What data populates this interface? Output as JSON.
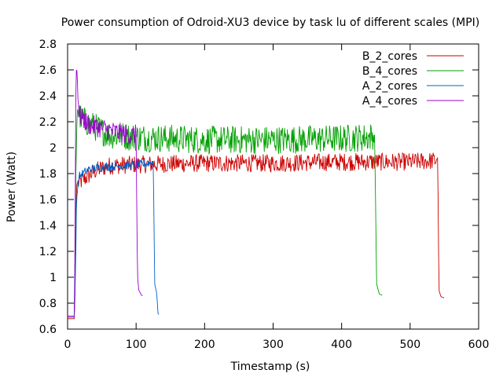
{
  "chart_data": {
    "type": "line",
    "title": "Power consumption of Odroid-XU3 device by task lu of different scales (MPI)",
    "xlabel": "Timestamp (s)",
    "ylabel": "Power (Watt)",
    "xlim": [
      0,
      600
    ],
    "ylim": [
      0.6,
      2.8
    ],
    "xticks": [
      0,
      100,
      200,
      300,
      400,
      500,
      600
    ],
    "xtick_labels": [
      "0",
      "100",
      "200",
      "300",
      "400",
      "500",
      "600"
    ],
    "yticks": [
      0.6,
      0.8,
      1.0,
      1.2,
      1.4,
      1.6,
      1.8,
      2.0,
      2.2,
      2.4,
      2.6,
      2.8
    ],
    "ytick_labels": [
      "0.6",
      "0.8",
      "1",
      "1.2",
      "1.4",
      "1.6",
      "1.8",
      "2",
      "2.2",
      "2.4",
      "2.6",
      "2.8"
    ],
    "grid": false,
    "legend_position": "top-right",
    "series": [
      {
        "name": "B_2_cores",
        "color": "#cc0000",
        "points": [
          [
            0,
            0.68
          ],
          [
            10,
            0.68
          ],
          [
            12,
            1.3
          ],
          [
            13,
            1.72
          ],
          [
            20,
            1.74
          ],
          [
            40,
            1.82
          ],
          [
            60,
            1.86
          ],
          [
            100,
            1.87
          ],
          [
            200,
            1.88
          ],
          [
            300,
            1.88
          ],
          [
            400,
            1.89
          ],
          [
            500,
            1.89
          ],
          [
            538,
            1.9
          ],
          [
            540,
            1.92
          ],
          [
            541,
            1.55
          ],
          [
            542,
            0.9
          ],
          [
            545,
            0.85
          ],
          [
            550,
            0.84
          ]
        ]
      },
      {
        "name": "B_4_cores",
        "color": "#00a000",
        "points": [
          [
            0,
            0.7
          ],
          [
            10,
            0.7
          ],
          [
            12,
            1.8
          ],
          [
            14,
            2.3
          ],
          [
            20,
            2.22
          ],
          [
            40,
            2.16
          ],
          [
            60,
            2.1
          ],
          [
            100,
            2.08
          ],
          [
            200,
            2.06
          ],
          [
            300,
            2.06
          ],
          [
            400,
            2.07
          ],
          [
            440,
            2.08
          ],
          [
            448,
            2.1
          ],
          [
            449,
            1.8
          ],
          [
            450,
            1.4
          ],
          [
            451,
            0.95
          ],
          [
            455,
            0.87
          ],
          [
            460,
            0.86
          ]
        ]
      },
      {
        "name": "A_2_cores",
        "color": "#0060c8",
        "points": [
          [
            0,
            0.69
          ],
          [
            10,
            0.69
          ],
          [
            12,
            1.2
          ],
          [
            13,
            1.6
          ],
          [
            17,
            1.78
          ],
          [
            30,
            1.83
          ],
          [
            50,
            1.85
          ],
          [
            80,
            1.86
          ],
          [
            110,
            1.87
          ],
          [
            125,
            1.89
          ],
          [
            126,
            1.5
          ],
          [
            127,
            0.95
          ],
          [
            130,
            0.88
          ],
          [
            132,
            0.72
          ],
          [
            133,
            0.71
          ]
        ]
      },
      {
        "name": "A_4_cores",
        "color": "#9900cc",
        "points": [
          [
            0,
            0.7
          ],
          [
            10,
            0.7
          ],
          [
            11,
            1.5
          ],
          [
            12,
            2.4
          ],
          [
            13,
            2.65
          ],
          [
            17,
            2.25
          ],
          [
            30,
            2.18
          ],
          [
            50,
            2.15
          ],
          [
            70,
            2.12
          ],
          [
            90,
            2.1
          ],
          [
            100,
            2.1
          ],
          [
            101,
            1.5
          ],
          [
            102,
            1.0
          ],
          [
            104,
            0.9
          ],
          [
            108,
            0.86
          ],
          [
            110,
            0.86
          ]
        ]
      }
    ]
  }
}
